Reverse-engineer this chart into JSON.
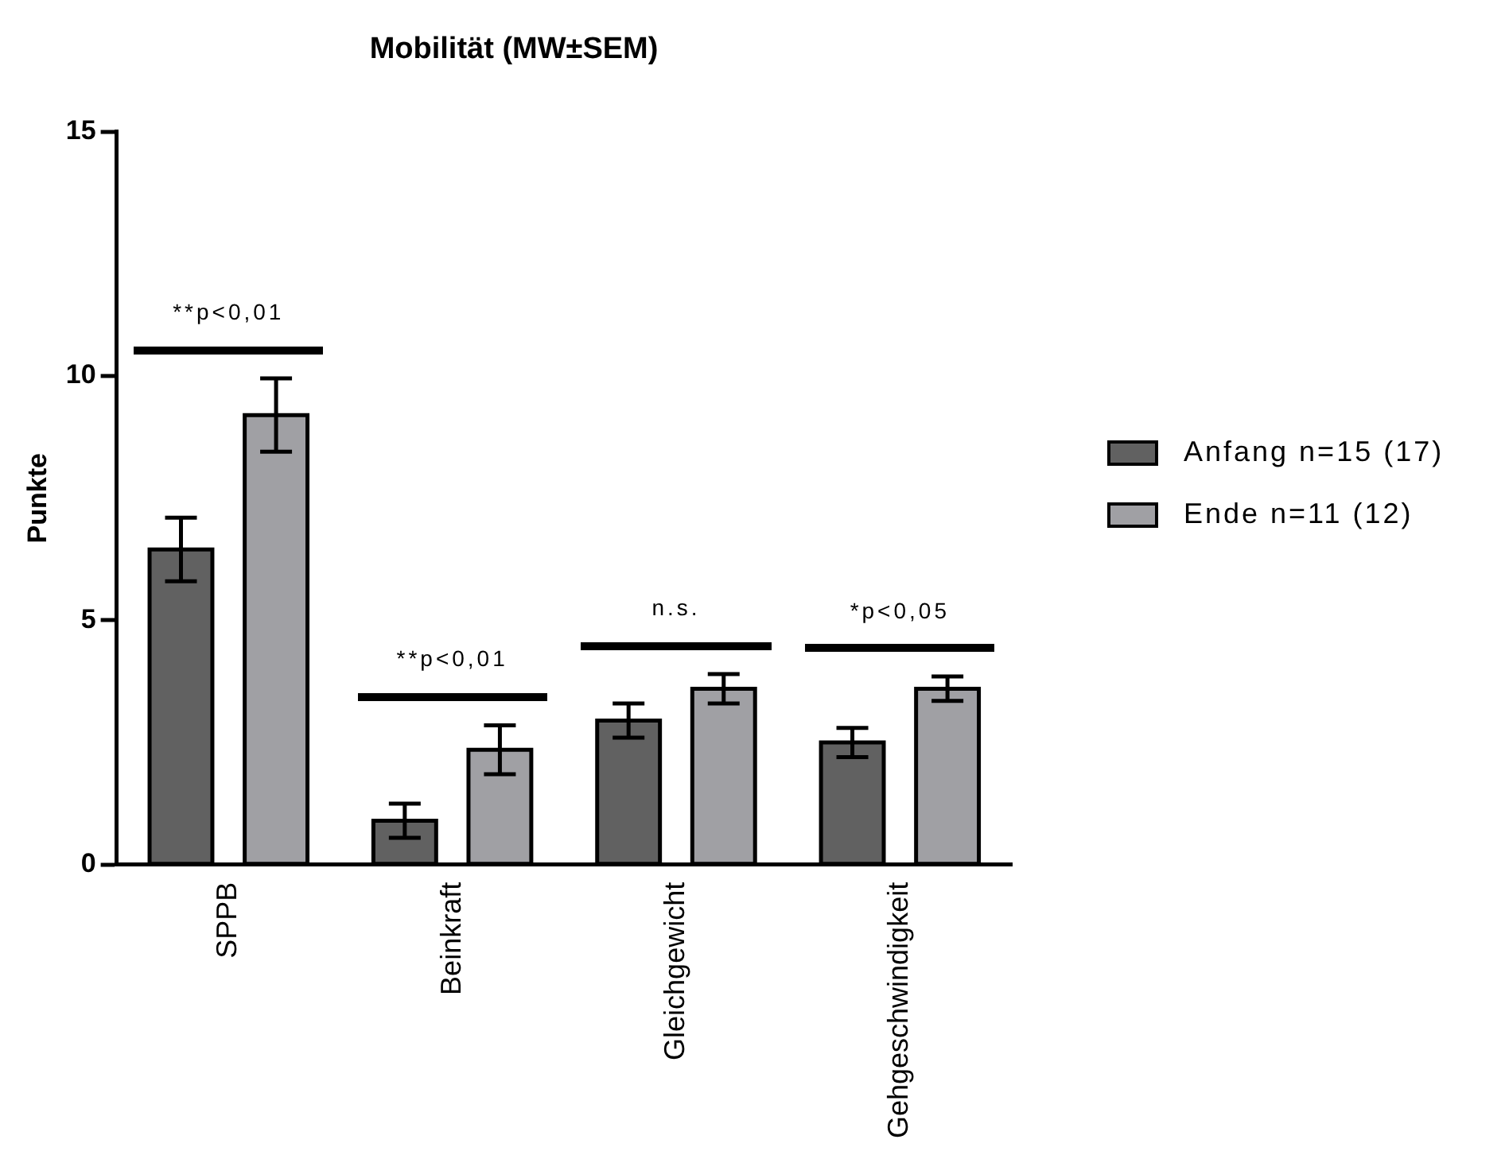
{
  "chart_data": {
    "type": "bar",
    "title": "Mobilität (MW±SEM)",
    "ylabel": "Punkte",
    "categories": [
      "SPPB",
      "Beinkraft",
      "Gleichgewicht",
      "Gehgeschwindigkeit"
    ],
    "series": [
      {
        "name": "Anfang n=15 (17)",
        "color": "#616161",
        "values": [
          6.45,
          0.9,
          2.95,
          2.5
        ],
        "errors": [
          0.65,
          0.35,
          0.35,
          0.3
        ]
      },
      {
        "name": "Ende n=11 (12)",
        "color": "#a0a0a4",
        "values": [
          9.2,
          2.35,
          3.6,
          3.6
        ],
        "errors": [
          0.75,
          0.5,
          0.3,
          0.25
        ]
      }
    ],
    "ylim": [
      0,
      15
    ],
    "yticks": [
      0,
      5,
      10,
      15
    ],
    "grid": false,
    "legend": "right",
    "annotations": [
      "**p<0,01",
      "**p<0,01",
      "n.s.",
      "*p<0,05"
    ]
  }
}
